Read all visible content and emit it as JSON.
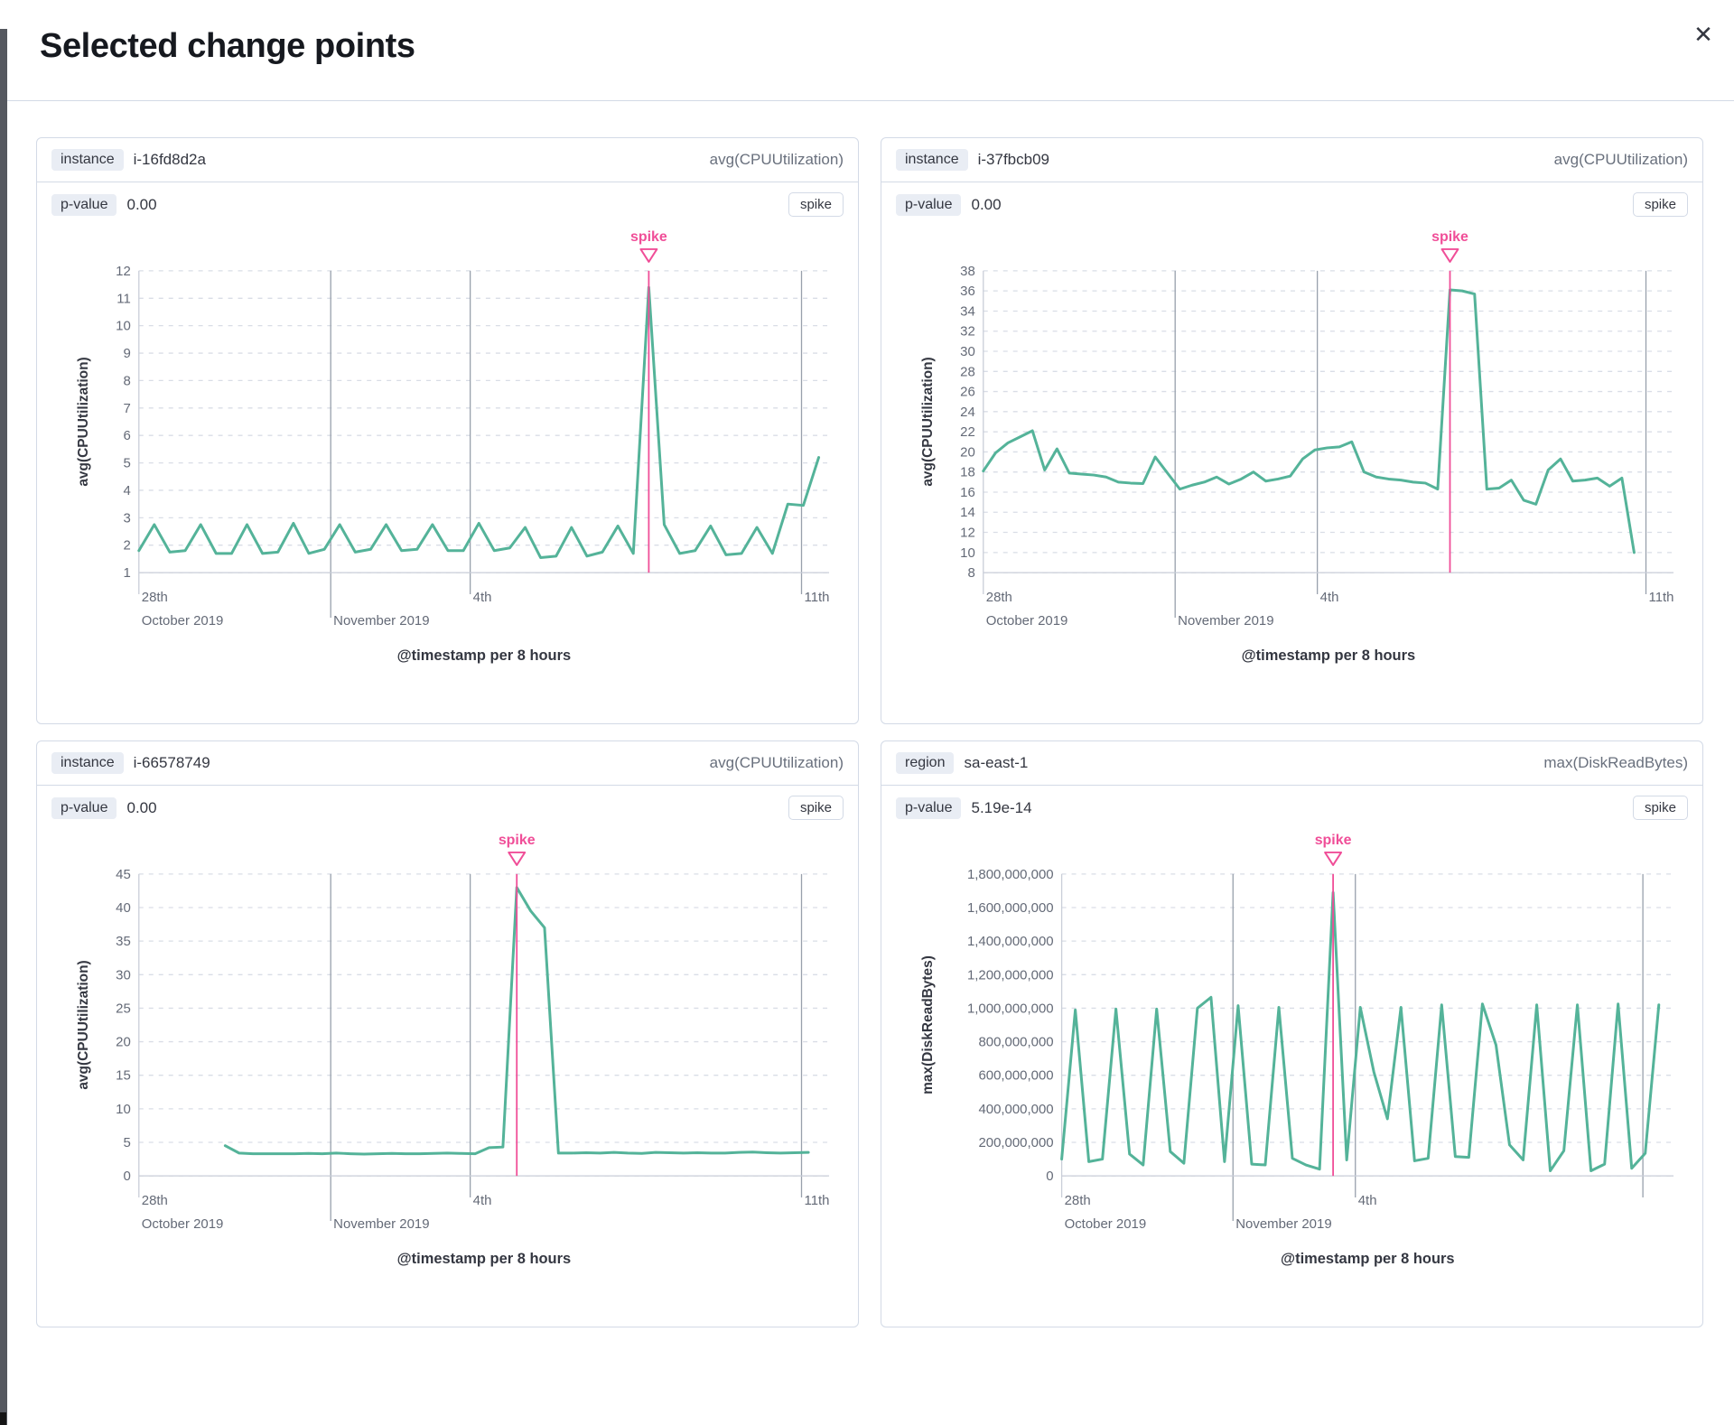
{
  "modal": {
    "title": "Selected change points",
    "close_icon": "✕"
  },
  "theme": {
    "series_green": "#54b399",
    "accent_pink": "#f04e98",
    "grid_dash": "#d9dde6",
    "event_gridline": "#98a0ac",
    "axis_line": "#c9ced8",
    "tick_text": "#646a77",
    "axis_title_text": "#343741"
  },
  "charts": [
    {
      "group_field": "instance",
      "group_value": "i-16fd8d2a",
      "metric_label": "avg(CPUUtilization)",
      "p_label": "p-value",
      "p_value": "0.00",
      "change_type_label": "spike",
      "chart_data": {
        "type": "line",
        "ylabel": "avg(CPUUtilization)",
        "xlabel": "@timestamp per 8 hours",
        "ylim": [
          1,
          12
        ],
        "ystep": 1,
        "y_format": "plain",
        "x_start": 0,
        "x_end": 0.985,
        "values": [
          1.8,
          2.75,
          1.75,
          1.8,
          2.75,
          1.7,
          1.7,
          2.75,
          1.7,
          1.75,
          2.8,
          1.7,
          1.85,
          2.75,
          1.75,
          1.85,
          2.75,
          1.8,
          1.85,
          2.75,
          1.8,
          1.8,
          2.8,
          1.8,
          1.9,
          2.65,
          1.55,
          1.6,
          2.65,
          1.6,
          1.75,
          2.7,
          1.7,
          11.4,
          2.75,
          1.7,
          1.8,
          2.7,
          1.65,
          1.7,
          2.65,
          1.7,
          3.5,
          3.45,
          5.2
        ],
        "annotation": {
          "label": "spike",
          "type": "spike",
          "index": 33
        },
        "x_ticks": [
          {
            "frac": 0,
            "line1": "28th",
            "line2": "October 2019"
          },
          {
            "frac": 0.278,
            "line1": "",
            "line2": "November 2019"
          },
          {
            "frac": 0.48,
            "line1": "4th",
            "line2": ""
          },
          {
            "frac": 0.96,
            "line1": "11th",
            "line2": ""
          }
        ],
        "v_gridlines": [
          {
            "frac": 0.278,
            "ext": 50
          },
          {
            "frac": 0.48,
            "ext": 24
          },
          {
            "frac": 0.96,
            "ext": 24
          }
        ]
      }
    },
    {
      "group_field": "instance",
      "group_value": "i-37fbcb09",
      "metric_label": "avg(CPUUtilization)",
      "p_label": "p-value",
      "p_value": "0.00",
      "change_type_label": "spike",
      "chart_data": {
        "type": "line",
        "ylabel": "avg(CPUUtilization)",
        "xlabel": "@timestamp per 8 hours",
        "ylim": [
          8,
          38
        ],
        "ystep": 2,
        "y_format": "plain",
        "x_start": 0,
        "x_end": 0.943,
        "values": [
          18.1,
          19.9,
          20.9,
          21.5,
          22.1,
          18.2,
          20.3,
          17.9,
          17.8,
          17.7,
          17.5,
          17.0,
          16.9,
          16.85,
          19.5,
          17.9,
          16.3,
          16.7,
          17.0,
          17.5,
          16.8,
          17.3,
          18.0,
          17.1,
          17.3,
          17.6,
          19.3,
          20.2,
          20.4,
          20.5,
          21.0,
          18.0,
          17.5,
          17.3,
          17.2,
          17.0,
          16.9,
          16.3,
          36.1,
          36.0,
          35.7,
          16.3,
          16.4,
          17.2,
          15.2,
          14.8,
          18.2,
          19.3,
          17.1,
          17.2,
          17.4,
          16.6,
          17.4,
          10.0
        ],
        "annotation": {
          "label": "spike",
          "type": "spike",
          "index": 38
        },
        "x_ticks": [
          {
            "frac": 0,
            "line1": "28th",
            "line2": "October 2019"
          },
          {
            "frac": 0.278,
            "line1": "",
            "line2": "November 2019"
          },
          {
            "frac": 0.484,
            "line1": "4th",
            "line2": ""
          },
          {
            "frac": 0.96,
            "line1": "11th",
            "line2": ""
          }
        ],
        "v_gridlines": [
          {
            "frac": 0.278,
            "ext": 50
          },
          {
            "frac": 0.484,
            "ext": 24
          },
          {
            "frac": 0.96,
            "ext": 24
          }
        ]
      }
    },
    {
      "group_field": "instance",
      "group_value": "i-66578749",
      "metric_label": "avg(CPUUtilization)",
      "p_label": "p-value",
      "p_value": "0.00",
      "change_type_label": "spike",
      "chart_data": {
        "type": "line",
        "ylabel": "avg(CPUUtilization)",
        "xlabel": "@timestamp per 8 hours",
        "ylim": [
          0,
          45
        ],
        "ystep": 5,
        "y_format": "plain",
        "x_start": 0.125,
        "x_end": 0.97,
        "values": [
          4.5,
          3.4,
          3.3,
          3.3,
          3.3,
          3.3,
          3.35,
          3.3,
          3.4,
          3.3,
          3.25,
          3.3,
          3.35,
          3.3,
          3.3,
          3.35,
          3.4,
          3.35,
          3.3,
          4.2,
          4.3,
          43,
          39.5,
          37,
          3.4,
          3.4,
          3.45,
          3.4,
          3.5,
          3.4,
          3.35,
          3.5,
          3.45,
          3.4,
          3.45,
          3.4,
          3.4,
          3.5,
          3.55,
          3.45,
          3.4,
          3.45,
          3.5
        ],
        "annotation": {
          "label": "spike",
          "type": "spike",
          "index": 21
        },
        "x_ticks": [
          {
            "frac": 0,
            "line1": "28th",
            "line2": "October 2019"
          },
          {
            "frac": 0.278,
            "line1": "",
            "line2": "November 2019"
          },
          {
            "frac": 0.48,
            "line1": "4th",
            "line2": ""
          },
          {
            "frac": 0.96,
            "line1": "11th",
            "line2": ""
          }
        ],
        "v_gridlines": [
          {
            "frac": 0.278,
            "ext": 50
          },
          {
            "frac": 0.48,
            "ext": 24
          },
          {
            "frac": 0.96,
            "ext": 24
          }
        ]
      }
    },
    {
      "group_field": "region",
      "group_value": "sa-east-1",
      "metric_label": "max(DiskReadBytes)",
      "p_label": "p-value",
      "p_value": "5.19e-14",
      "change_type_label": "spike",
      "chart_data": {
        "type": "line",
        "ylabel": "max(DiskReadBytes)",
        "xlabel": "@timestamp per 8 hours",
        "ylim": [
          0,
          1800000000
        ],
        "ystep": 200000000,
        "y_format": "commas",
        "x_start": 0,
        "x_end": 0.976,
        "values": [
          100000000,
          990000000,
          85000000,
          100000000,
          995000000,
          130000000,
          65000000,
          995000000,
          145000000,
          75000000,
          1000000000,
          1065000000,
          85000000,
          1015000000,
          70000000,
          65000000,
          1005000000,
          105000000,
          65000000,
          40000000,
          1690000000,
          95000000,
          1005000000,
          620000000,
          340000000,
          1005000000,
          90000000,
          105000000,
          1020000000,
          115000000,
          110000000,
          1025000000,
          780000000,
          185000000,
          95000000,
          1020000000,
          30000000,
          150000000,
          1020000000,
          30000000,
          70000000,
          1025000000,
          45000000,
          135000000,
          1020000000
        ],
        "annotation": {
          "label": "spike",
          "type": "spike",
          "index": 20
        },
        "x_ticks": [
          {
            "frac": 0,
            "line1": "28th",
            "line2": "October 2019"
          },
          {
            "frac": 0.28,
            "line1": "",
            "line2": "November 2019"
          },
          {
            "frac": 0.48,
            "line1": "4th",
            "line2": ""
          }
        ],
        "v_gridlines": [
          {
            "frac": 0.28,
            "ext": 50
          },
          {
            "frac": 0.48,
            "ext": 24
          },
          {
            "frac": 0.95,
            "ext": 24
          }
        ]
      }
    }
  ]
}
